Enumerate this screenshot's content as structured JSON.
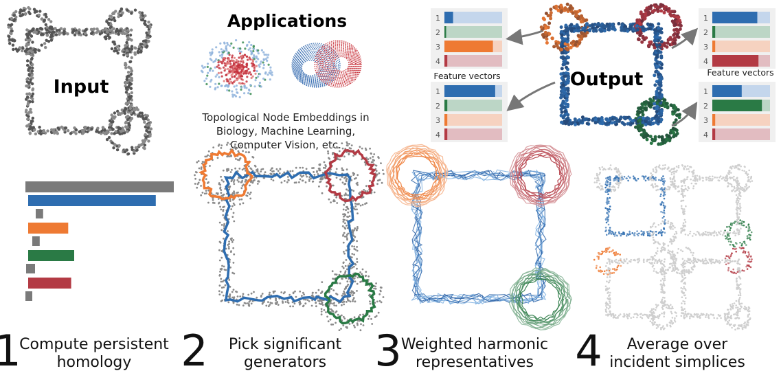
{
  "title_applications": "Applications",
  "applications_caption": [
    "Topological Node Embeddings in",
    "Biology, Machine Learning,",
    "Computer Vision, etc."
  ],
  "label_input": "Input",
  "label_output": "Output",
  "feature_vectors_label": "Feature vectors",
  "colors": {
    "blue": "#2e6db0",
    "orange": "#ee7a33",
    "green": "#2a7a45",
    "red": "#b33a44",
    "gray": "#7a7a7a",
    "panel_bg": "#f0f0f0"
  },
  "feature_vectors": [
    {
      "id": "top-left",
      "indices": [
        "1",
        "2",
        "3",
        "4"
      ],
      "values": [
        0.15,
        0.03,
        0.84,
        0.05
      ]
    },
    {
      "id": "bottom-left",
      "indices": [
        "1",
        "2",
        "3",
        "4"
      ],
      "values": [
        0.88,
        0.05,
        0.05,
        0.05
      ]
    },
    {
      "id": "top-right",
      "indices": [
        "1",
        "2",
        "3",
        "4"
      ],
      "values": [
        0.78,
        0.05,
        0.05,
        0.8
      ]
    },
    {
      "id": "bottom-right",
      "indices": [
        "1",
        "2",
        "3",
        "4"
      ],
      "values": [
        0.51,
        0.86,
        0.05,
        0.05
      ]
    }
  ],
  "barcode": {
    "lengths": [
      1.0,
      0.86,
      0.05,
      0.27,
      0.05,
      0.31,
      0.06,
      0.29,
      0.04
    ],
    "color_keys": [
      "gray",
      "blue",
      "gray",
      "orange",
      "gray",
      "green",
      "gray",
      "red",
      "gray"
    ]
  },
  "steps": [
    {
      "number": "1",
      "line1": "Compute persistent",
      "line2": "homology"
    },
    {
      "number": "2",
      "line1": "Pick significant",
      "line2": "generators"
    },
    {
      "number": "3",
      "line1": "Weighted harmonic",
      "line2": "representatives"
    },
    {
      "number": "4",
      "line1": "Average over",
      "line2": "incident simplices"
    }
  ]
}
